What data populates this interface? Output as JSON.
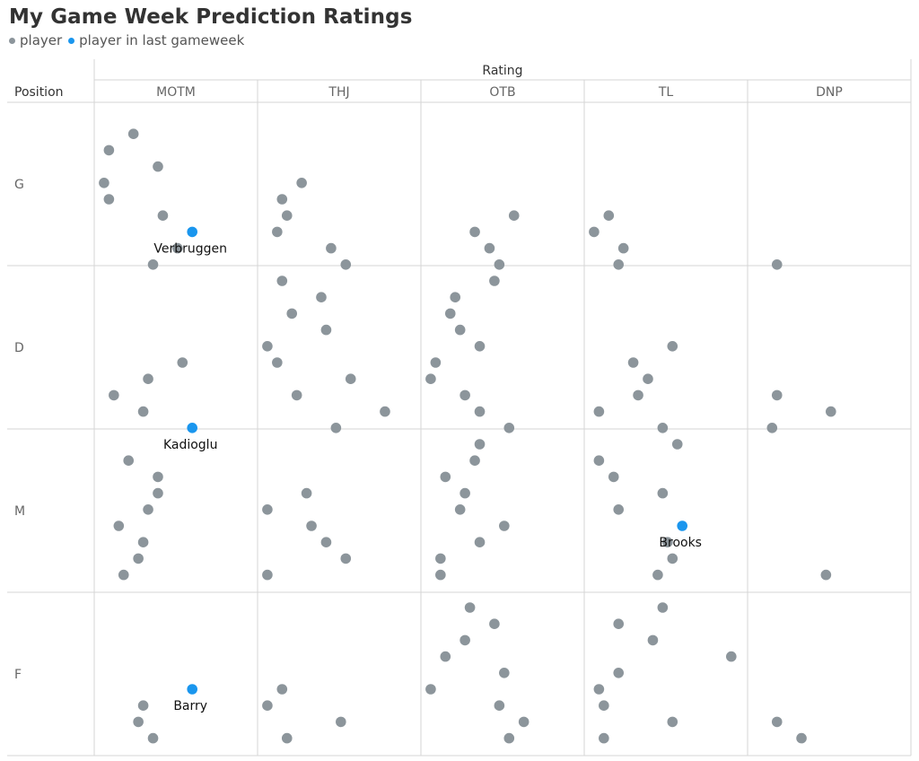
{
  "chart_data": {
    "type": "scatter",
    "title": "My Game Week Prediction Ratings",
    "legend": [
      {
        "label": "player",
        "color": "#8c959b"
      },
      {
        "label": "player in last gameweek",
        "color": "#1a96ee"
      }
    ],
    "column_axis_title": "Rating",
    "row_axis_title": "Position",
    "columns": [
      "MOTM",
      "THJ",
      "OTB",
      "TL",
      "DNP"
    ],
    "rows": [
      "G",
      "D",
      "M",
      "F"
    ],
    "x_range": [
      0,
      1
    ],
    "y_range": [
      0,
      10
    ],
    "points": [
      {
        "row": "G",
        "col": "MOTM",
        "x": 0.24,
        "y": 1
      },
      {
        "row": "G",
        "col": "MOTM",
        "x": 0.09,
        "y": 2
      },
      {
        "row": "G",
        "col": "MOTM",
        "x": 0.39,
        "y": 3
      },
      {
        "row": "G",
        "col": "MOTM",
        "x": 0.06,
        "y": 4
      },
      {
        "row": "G",
        "col": "MOTM",
        "x": 0.09,
        "y": 5
      },
      {
        "row": "G",
        "col": "MOTM",
        "x": 0.42,
        "y": 6
      },
      {
        "row": "G",
        "col": "MOTM",
        "x": 0.51,
        "y": 8
      },
      {
        "row": "G",
        "col": "MOTM",
        "x": 0.36,
        "y": 9
      },
      {
        "row": "G",
        "col": "THJ",
        "x": 0.27,
        "y": 4
      },
      {
        "row": "G",
        "col": "THJ",
        "x": 0.15,
        "y": 5
      },
      {
        "row": "G",
        "col": "THJ",
        "x": 0.18,
        "y": 6
      },
      {
        "row": "G",
        "col": "THJ",
        "x": 0.12,
        "y": 7
      },
      {
        "row": "G",
        "col": "THJ",
        "x": 0.45,
        "y": 8
      },
      {
        "row": "G",
        "col": "THJ",
        "x": 0.54,
        "y": 9
      },
      {
        "row": "G",
        "col": "OTB",
        "x": 0.57,
        "y": 6
      },
      {
        "row": "G",
        "col": "OTB",
        "x": 0.33,
        "y": 7
      },
      {
        "row": "G",
        "col": "OTB",
        "x": 0.42,
        "y": 8
      },
      {
        "row": "G",
        "col": "OTB",
        "x": 0.48,
        "y": 9
      },
      {
        "row": "G",
        "col": "TL",
        "x": 0.15,
        "y": 6
      },
      {
        "row": "G",
        "col": "TL",
        "x": 0.06,
        "y": 7
      },
      {
        "row": "G",
        "col": "TL",
        "x": 0.24,
        "y": 8
      },
      {
        "row": "G",
        "col": "TL",
        "x": 0.21,
        "y": 9
      },
      {
        "row": "G",
        "col": "DNP",
        "x": 0.18,
        "y": 9
      },
      {
        "row": "D",
        "col": "MOTM",
        "x": 0.54,
        "y": 5
      },
      {
        "row": "D",
        "col": "MOTM",
        "x": 0.33,
        "y": 6
      },
      {
        "row": "D",
        "col": "MOTM",
        "x": 0.12,
        "y": 7
      },
      {
        "row": "D",
        "col": "MOTM",
        "x": 0.3,
        "y": 8
      },
      {
        "row": "D",
        "col": "THJ",
        "x": 0.15,
        "y": 0
      },
      {
        "row": "D",
        "col": "THJ",
        "x": 0.39,
        "y": 1
      },
      {
        "row": "D",
        "col": "THJ",
        "x": 0.21,
        "y": 2
      },
      {
        "row": "D",
        "col": "THJ",
        "x": 0.42,
        "y": 3
      },
      {
        "row": "D",
        "col": "THJ",
        "x": 0.06,
        "y": 4
      },
      {
        "row": "D",
        "col": "THJ",
        "x": 0.12,
        "y": 5
      },
      {
        "row": "D",
        "col": "THJ",
        "x": 0.57,
        "y": 6
      },
      {
        "row": "D",
        "col": "THJ",
        "x": 0.24,
        "y": 7
      },
      {
        "row": "D",
        "col": "THJ",
        "x": 0.78,
        "y": 8
      },
      {
        "row": "D",
        "col": "THJ",
        "x": 0.48,
        "y": 9
      },
      {
        "row": "D",
        "col": "OTB",
        "x": 0.45,
        "y": 0
      },
      {
        "row": "D",
        "col": "OTB",
        "x": 0.21,
        "y": 1
      },
      {
        "row": "D",
        "col": "OTB",
        "x": 0.18,
        "y": 2
      },
      {
        "row": "D",
        "col": "OTB",
        "x": 0.24,
        "y": 3
      },
      {
        "row": "D",
        "col": "OTB",
        "x": 0.36,
        "y": 4
      },
      {
        "row": "D",
        "col": "OTB",
        "x": 0.09,
        "y": 5
      },
      {
        "row": "D",
        "col": "OTB",
        "x": 0.06,
        "y": 6
      },
      {
        "row": "D",
        "col": "OTB",
        "x": 0.27,
        "y": 7
      },
      {
        "row": "D",
        "col": "OTB",
        "x": 0.36,
        "y": 8
      },
      {
        "row": "D",
        "col": "OTB",
        "x": 0.54,
        "y": 9
      },
      {
        "row": "D",
        "col": "TL",
        "x": 0.54,
        "y": 4
      },
      {
        "row": "D",
        "col": "TL",
        "x": 0.3,
        "y": 5
      },
      {
        "row": "D",
        "col": "TL",
        "x": 0.39,
        "y": 6
      },
      {
        "row": "D",
        "col": "TL",
        "x": 0.33,
        "y": 7
      },
      {
        "row": "D",
        "col": "TL",
        "x": 0.09,
        "y": 8
      },
      {
        "row": "D",
        "col": "TL",
        "x": 0.48,
        "y": 9
      },
      {
        "row": "D",
        "col": "DNP",
        "x": 0.18,
        "y": 7
      },
      {
        "row": "D",
        "col": "DNP",
        "x": 0.51,
        "y": 8
      },
      {
        "row": "D",
        "col": "DNP",
        "x": 0.15,
        "y": 9
      },
      {
        "row": "M",
        "col": "MOTM",
        "x": 0.21,
        "y": 1
      },
      {
        "row": "M",
        "col": "MOTM",
        "x": 0.39,
        "y": 2
      },
      {
        "row": "M",
        "col": "MOTM",
        "x": 0.39,
        "y": 3
      },
      {
        "row": "M",
        "col": "MOTM",
        "x": 0.33,
        "y": 4
      },
      {
        "row": "M",
        "col": "MOTM",
        "x": 0.15,
        "y": 5
      },
      {
        "row": "M",
        "col": "MOTM",
        "x": 0.3,
        "y": 6
      },
      {
        "row": "M",
        "col": "MOTM",
        "x": 0.27,
        "y": 7
      },
      {
        "row": "M",
        "col": "MOTM",
        "x": 0.18,
        "y": 8
      },
      {
        "row": "M",
        "col": "THJ",
        "x": 0.3,
        "y": 3
      },
      {
        "row": "M",
        "col": "THJ",
        "x": 0.06,
        "y": 4
      },
      {
        "row": "M",
        "col": "THJ",
        "x": 0.33,
        "y": 5
      },
      {
        "row": "M",
        "col": "THJ",
        "x": 0.42,
        "y": 6
      },
      {
        "row": "M",
        "col": "THJ",
        "x": 0.54,
        "y": 7
      },
      {
        "row": "M",
        "col": "THJ",
        "x": 0.06,
        "y": 8
      },
      {
        "row": "M",
        "col": "OTB",
        "x": 0.36,
        "y": 0
      },
      {
        "row": "M",
        "col": "OTB",
        "x": 0.33,
        "y": 1
      },
      {
        "row": "M",
        "col": "OTB",
        "x": 0.15,
        "y": 2
      },
      {
        "row": "M",
        "col": "OTB",
        "x": 0.27,
        "y": 3
      },
      {
        "row": "M",
        "col": "OTB",
        "x": 0.24,
        "y": 4
      },
      {
        "row": "M",
        "col": "OTB",
        "x": 0.51,
        "y": 5
      },
      {
        "row": "M",
        "col": "OTB",
        "x": 0.36,
        "y": 6
      },
      {
        "row": "M",
        "col": "OTB",
        "x": 0.12,
        "y": 7
      },
      {
        "row": "M",
        "col": "OTB",
        "x": 0.12,
        "y": 8
      },
      {
        "row": "M",
        "col": "TL",
        "x": 0.57,
        "y": 0
      },
      {
        "row": "M",
        "col": "TL",
        "x": 0.09,
        "y": 1
      },
      {
        "row": "M",
        "col": "TL",
        "x": 0.18,
        "y": 2
      },
      {
        "row": "M",
        "col": "TL",
        "x": 0.48,
        "y": 3
      },
      {
        "row": "M",
        "col": "TL",
        "x": 0.21,
        "y": 4
      },
      {
        "row": "M",
        "col": "TL",
        "x": 0.51,
        "y": 6
      },
      {
        "row": "M",
        "col": "TL",
        "x": 0.54,
        "y": 7
      },
      {
        "row": "M",
        "col": "TL",
        "x": 0.45,
        "y": 8
      },
      {
        "row": "M",
        "col": "DNP",
        "x": 0.48,
        "y": 8
      },
      {
        "row": "F",
        "col": "MOTM",
        "x": 0.3,
        "y": 6
      },
      {
        "row": "F",
        "col": "MOTM",
        "x": 0.27,
        "y": 7
      },
      {
        "row": "F",
        "col": "MOTM",
        "x": 0.36,
        "y": 8
      },
      {
        "row": "F",
        "col": "THJ",
        "x": 0.15,
        "y": 5
      },
      {
        "row": "F",
        "col": "THJ",
        "x": 0.06,
        "y": 6
      },
      {
        "row": "F",
        "col": "THJ",
        "x": 0.51,
        "y": 7
      },
      {
        "row": "F",
        "col": "THJ",
        "x": 0.18,
        "y": 8
      },
      {
        "row": "F",
        "col": "OTB",
        "x": 0.3,
        "y": 0
      },
      {
        "row": "F",
        "col": "OTB",
        "x": 0.45,
        "y": 1
      },
      {
        "row": "F",
        "col": "OTB",
        "x": 0.27,
        "y": 2
      },
      {
        "row": "F",
        "col": "OTB",
        "x": 0.15,
        "y": 3
      },
      {
        "row": "F",
        "col": "OTB",
        "x": 0.51,
        "y": 4
      },
      {
        "row": "F",
        "col": "OTB",
        "x": 0.06,
        "y": 5
      },
      {
        "row": "F",
        "col": "OTB",
        "x": 0.48,
        "y": 6
      },
      {
        "row": "F",
        "col": "OTB",
        "x": 0.63,
        "y": 7
      },
      {
        "row": "F",
        "col": "OTB",
        "x": 0.54,
        "y": 8
      },
      {
        "row": "F",
        "col": "TL",
        "x": 0.48,
        "y": 0
      },
      {
        "row": "F",
        "col": "TL",
        "x": 0.21,
        "y": 1
      },
      {
        "row": "F",
        "col": "TL",
        "x": 0.42,
        "y": 2
      },
      {
        "row": "F",
        "col": "TL",
        "x": 0.9,
        "y": 3
      },
      {
        "row": "F",
        "col": "TL",
        "x": 0.21,
        "y": 4
      },
      {
        "row": "F",
        "col": "TL",
        "x": 0.09,
        "y": 5
      },
      {
        "row": "F",
        "col": "TL",
        "x": 0.12,
        "y": 6
      },
      {
        "row": "F",
        "col": "TL",
        "x": 0.54,
        "y": 7
      },
      {
        "row": "F",
        "col": "TL",
        "x": 0.12,
        "y": 8
      },
      {
        "row": "F",
        "col": "DNP",
        "x": 0.18,
        "y": 7
      },
      {
        "row": "F",
        "col": "DNP",
        "x": 0.33,
        "y": 8
      }
    ],
    "highlighted": [
      {
        "row": "G",
        "col": "MOTM",
        "x": 0.6,
        "y": 7,
        "name": "Verbruggen"
      },
      {
        "row": "D",
        "col": "MOTM",
        "x": 0.6,
        "y": 9,
        "name": "Kadioglu"
      },
      {
        "row": "M",
        "col": "TL",
        "x": 0.6,
        "y": 5,
        "name": "Brooks"
      },
      {
        "row": "F",
        "col": "MOTM",
        "x": 0.6,
        "y": 5,
        "name": "Barry"
      }
    ],
    "colors": {
      "player": "#8c959b",
      "last_gameweek": "#1a96ee",
      "grid": "#d5d5d5"
    }
  }
}
